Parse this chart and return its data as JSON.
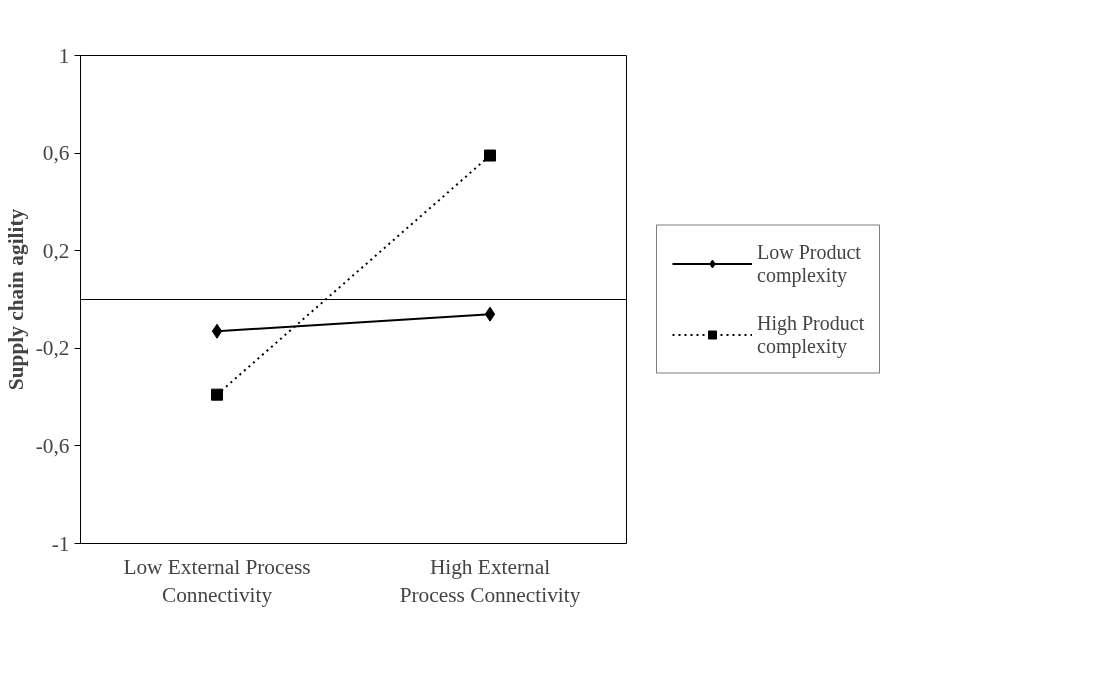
{
  "chart_data": {
    "type": "line",
    "ylabel": "Supply chain agility",
    "categories": [
      "Low External Process Connectivity",
      "High External Process Connectivity"
    ],
    "series": [
      {
        "name": "Low Product complexity",
        "color": "#000000",
        "values": [
          -0.13,
          -0.06
        ],
        "marker": "diamond",
        "line_style": "solid"
      },
      {
        "name": "High Product complexity",
        "color": "#000000",
        "values": [
          -0.39,
          0.59
        ],
        "marker": "square",
        "line_style": "dotted"
      }
    ],
    "ylim": [
      -1,
      1
    ],
    "yticks": [
      {
        "value": -1,
        "label": "-1"
      },
      {
        "value": -0.6,
        "label": "-0,6"
      },
      {
        "value": -0.2,
        "label": "-0,2"
      },
      {
        "value": 0.2,
        "label": "0,2"
      },
      {
        "value": 0.6,
        "label": "0,6"
      },
      {
        "value": 1,
        "label": "1"
      }
    ],
    "ref_lines": [
      {
        "axis": "y",
        "value": 0
      }
    ],
    "grid": false,
    "legend": "right"
  }
}
